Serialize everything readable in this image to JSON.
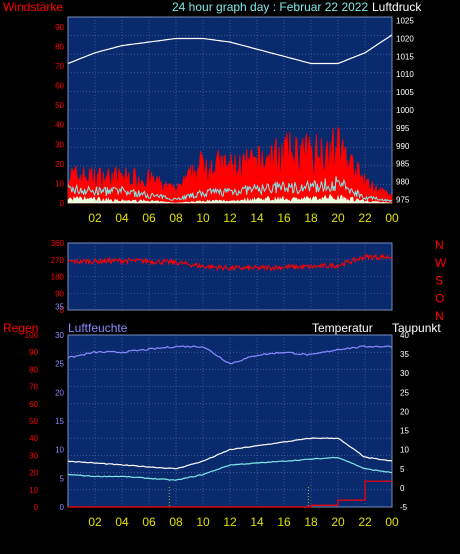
{
  "colors": {
    "panel_bg": "#0a2a6e",
    "grid": "#5a72b0",
    "wind_gust": "#ff0000",
    "wind_mean": "#7fe8e8",
    "wind_min": "#e8ffe0",
    "pressure": "#ffffff",
    "direction": "#ff0000",
    "humidity": "#8a8aff",
    "temperature": "#ffffff",
    "dewpoint": "#7fe8e8",
    "rain": "#ff0000",
    "marker": "#e0e000",
    "label_red": "#ff0000",
    "label_cyan": "#7fe8e8",
    "label_white": "#ffffff",
    "label_blue": "#8a8aff",
    "label_yellow": "#e0e000"
  },
  "header": {
    "left_label": "Windstärke",
    "title": "24 hour graph day : Februar 22 2022",
    "right_label": "Luftdruck"
  },
  "wind_panel": {
    "left_ticks": [
      "0",
      "10",
      "20",
      "30",
      "40",
      "50",
      "60",
      "70",
      "80",
      "90"
    ],
    "right_ticks": [
      "975",
      "980",
      "985",
      "990",
      "995",
      "1000",
      "1005",
      "1010",
      "1015",
      "1020",
      "1025"
    ]
  },
  "x_ticks": [
    "02",
    "04",
    "06",
    "08",
    "10",
    "12",
    "14",
    "16",
    "18",
    "20",
    "22",
    "00"
  ],
  "direction_panel": {
    "left_ticks": [
      "0",
      "90",
      "180",
      "270",
      "360"
    ],
    "right_letters": [
      "N",
      "W",
      "S",
      "O",
      "N"
    ]
  },
  "bottom_header": {
    "rain_label": "Regen",
    "humidity_label": "Luftfeuchte",
    "temp_label": "Temperatur",
    "dew_label": "Taupunkt"
  },
  "bottom_panel": {
    "rain_ticks": [
      "0",
      "10",
      "20",
      "30",
      "40",
      "50",
      "60",
      "70",
      "80",
      "90",
      "100"
    ],
    "hum_ticks": [
      "0",
      "5",
      "10",
      "15",
      "20",
      "25",
      "30",
      "35"
    ],
    "temp_ticks": [
      "-5",
      "0",
      "5",
      "10",
      "15",
      "20",
      "25",
      "30",
      "35",
      "40"
    ]
  },
  "chart_data": [
    {
      "type": "line",
      "name": "wind and pressure",
      "x": [
        0,
        2,
        4,
        6,
        8,
        10,
        12,
        14,
        16,
        18,
        20,
        22,
        24
      ],
      "series": [
        {
          "name": "Luftdruck",
          "axis": "right",
          "values": [
            1013,
            1016,
            1018,
            1019,
            1020,
            1020,
            1019,
            1017,
            1015,
            1013,
            1013,
            1016,
            1021
          ]
        },
        {
          "name": "wind gust",
          "axis": "left",
          "values": [
            14,
            13,
            13,
            12,
            6,
            20,
            18,
            20,
            25,
            25,
            28,
            10,
            3
          ]
        },
        {
          "name": "wind mean",
          "axis": "left",
          "values": [
            7,
            6,
            6,
            4,
            2,
            5,
            6,
            7,
            8,
            8,
            10,
            3,
            1
          ]
        },
        {
          "name": "wind min",
          "axis": "left",
          "values": [
            2,
            2,
            1,
            1,
            0,
            1,
            1,
            2,
            2,
            2,
            3,
            1,
            0
          ]
        }
      ],
      "ylim_left": [
        0,
        95
      ],
      "ylim_right": [
        974,
        1026
      ]
    },
    {
      "type": "line",
      "name": "wind direction",
      "x": [
        0,
        2,
        4,
        6,
        8,
        10,
        12,
        14,
        16,
        18,
        20,
        22,
        24
      ],
      "series": [
        {
          "name": "direction",
          "values": [
            260,
            262,
            265,
            262,
            255,
            235,
            225,
            225,
            230,
            232,
            240,
            285,
            285
          ]
        }
      ],
      "ylim": [
        0,
        360
      ]
    },
    {
      "type": "line",
      "name": "humidity temperature rain",
      "x": [
        0,
        2,
        4,
        6,
        8,
        10,
        12,
        14,
        16,
        18,
        20,
        22,
        24
      ],
      "series": [
        {
          "name": "Luftfeuchte",
          "axis": "left",
          "values": [
            26,
            27,
            27,
            27.5,
            28,
            28,
            25,
            26.5,
            27,
            26.5,
            27.5,
            28,
            28
          ]
        },
        {
          "name": "Temperatur",
          "axis": "right",
          "values": [
            7,
            6.5,
            6,
            5.5,
            5,
            7,
            10,
            11,
            12,
            13,
            13,
            8,
            7
          ]
        },
        {
          "name": "Taupunkt",
          "axis": "right",
          "values": [
            3.5,
            3,
            3,
            2.5,
            2,
            3.5,
            6,
            6.5,
            7,
            7.5,
            8,
            5,
            4
          ]
        },
        {
          "name": "Regen",
          "axis": "rain",
          "values": [
            0,
            0,
            0,
            0,
            0,
            0,
            0,
            0,
            0,
            1,
            4,
            15,
            15
          ]
        }
      ],
      "ylim_left": [
        0,
        30
      ],
      "ylim_right": [
        -5,
        40
      ],
      "markers_hours": [
        7.5,
        17.8
      ]
    }
  ]
}
